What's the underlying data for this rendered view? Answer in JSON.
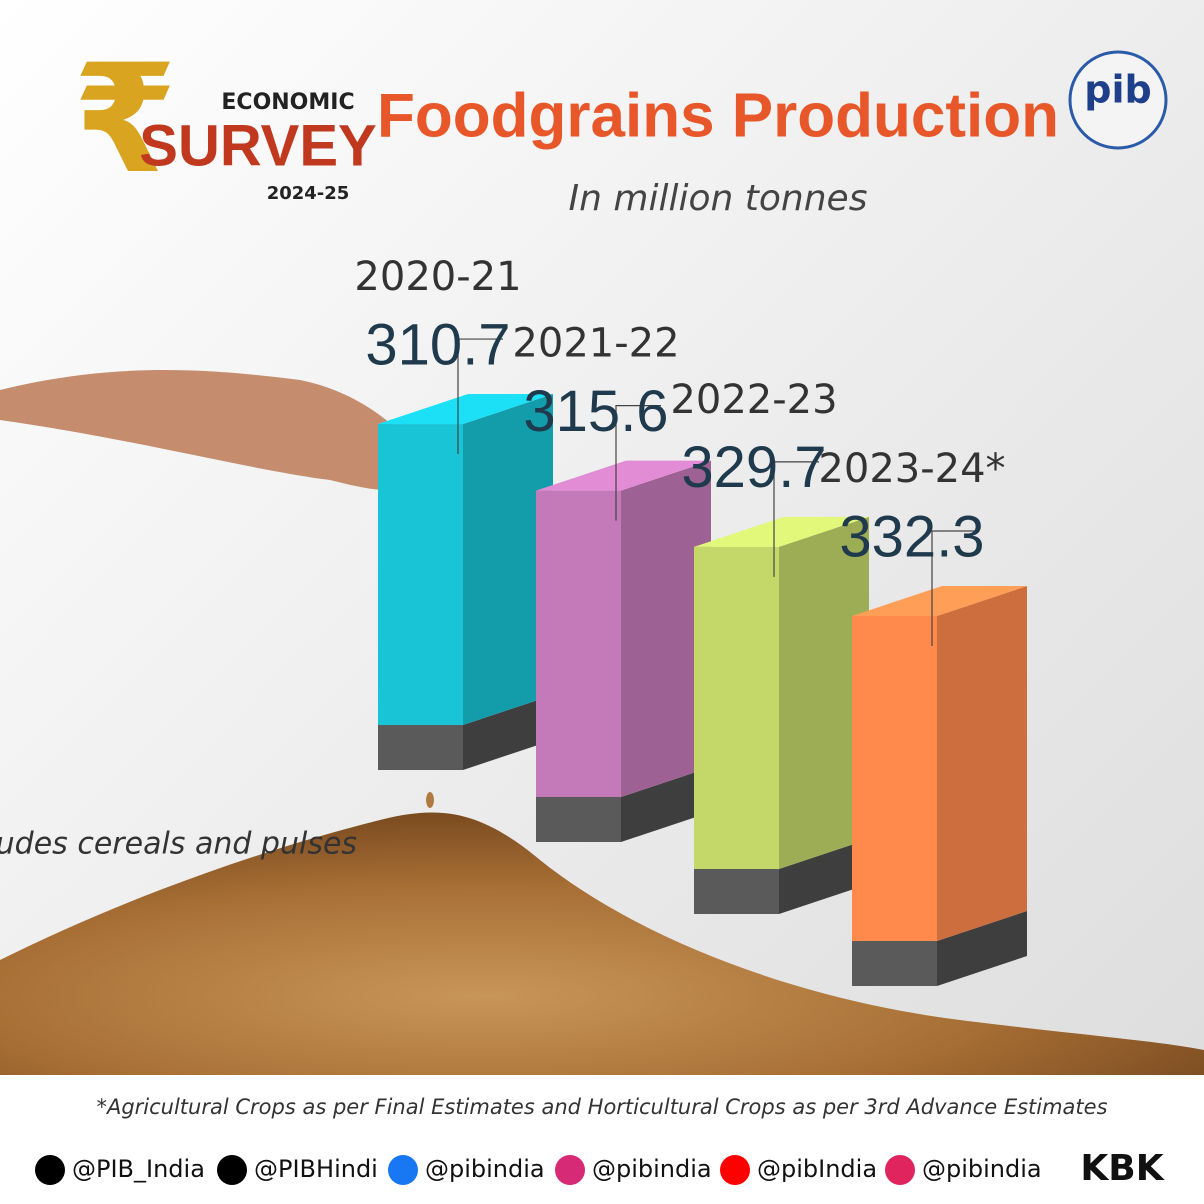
{
  "header": {
    "brand_top": "ECONOMIC",
    "brand_main": "SURVEY",
    "brand_year": "2024-25"
  },
  "chart_data": {
    "type": "bar",
    "title": "Foodgrains Production",
    "subtitle": "In million tonnes",
    "categories": [
      "2020-21",
      "2021-22",
      "2022-23",
      "2023-24*"
    ],
    "values": [
      310.7,
      315.6,
      329.7,
      332.3
    ],
    "colors": [
      "#18c4d6",
      "#c47ab8",
      "#c4d86a",
      "#ff8a4c"
    ],
    "annotation": "Includes cereals and pulses"
  },
  "footer": {
    "footnote": "*Agricultural Crops as per Final Estimates and Horticultural Crops as per 3rd Advance Estimates",
    "handles": [
      "@PIB_India",
      "@PIBHindi",
      "@pibindia",
      "@pibindia",
      "@pibIndia",
      "@pibindia"
    ],
    "credit": "KBK"
  }
}
